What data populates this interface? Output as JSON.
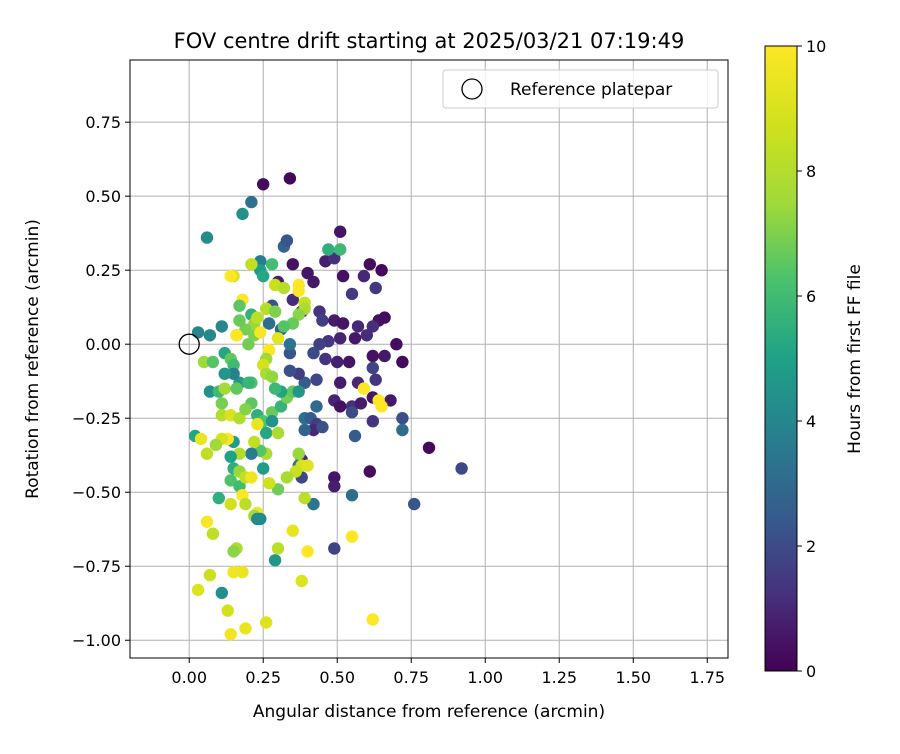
{
  "chart_data": {
    "type": "scatter",
    "title": "FOV centre drift starting at 2025/03/21 07:19:49",
    "xlabel": "Angular distance from reference (arcmin)",
    "ylabel": "Rotation from reference (arcmin)",
    "xlim": [
      -0.2,
      1.82
    ],
    "ylim": [
      -1.06,
      0.96
    ],
    "xticks": [
      0.0,
      0.25,
      0.5,
      0.75,
      1.0,
      1.25,
      1.5,
      1.75
    ],
    "xtick_labels": [
      "0.00",
      "0.25",
      "0.50",
      "0.75",
      "1.00",
      "1.25",
      "1.50",
      "1.75"
    ],
    "yticks": [
      -1.0,
      -0.75,
      -0.5,
      -0.25,
      0.0,
      0.25,
      0.5,
      0.75
    ],
    "ytick_labels": [
      "−1.00",
      "−0.75",
      "−0.50",
      "−0.25",
      "0.00",
      "0.25",
      "0.50",
      "0.75"
    ],
    "grid": true,
    "legend": {
      "placement": "top-right",
      "entries": [
        "Reference platepar"
      ]
    },
    "reference_point": {
      "name": "Reference platepar",
      "x": 0.0,
      "y": 0.0
    },
    "colorbar": {
      "label": "Hours from first FF file",
      "range": [
        0,
        10
      ],
      "ticks": [
        0,
        2,
        4,
        6,
        8,
        10
      ],
      "tick_labels": [
        "0",
        "2",
        "4",
        "6",
        "8",
        "10"
      ],
      "colormap": "viridis"
    },
    "points": [
      [
        0.25,
        0.54,
        0.3
      ],
      [
        0.34,
        0.56,
        0.2
      ],
      [
        0.51,
        0.38,
        0.5
      ],
      [
        0.46,
        0.28,
        0.8
      ],
      [
        0.49,
        0.29,
        1.2
      ],
      [
        0.52,
        0.23,
        0.4
      ],
      [
        0.61,
        0.27,
        0.3
      ],
      [
        0.65,
        0.25,
        0.2
      ],
      [
        0.59,
        0.23,
        1.0
      ],
      [
        0.63,
        0.19,
        1.4
      ],
      [
        0.55,
        0.17,
        1.5
      ],
      [
        0.42,
        0.21,
        0.6
      ],
      [
        0.4,
        0.24,
        0.5
      ],
      [
        0.35,
        0.27,
        0.4
      ],
      [
        0.3,
        0.21,
        0.8
      ],
      [
        0.35,
        0.15,
        1.1
      ],
      [
        0.38,
        0.11,
        0.9
      ],
      [
        0.44,
        0.11,
        1.3
      ],
      [
        0.45,
        0.08,
        1.6
      ],
      [
        0.49,
        0.08,
        0.7
      ],
      [
        0.52,
        0.07,
        0.5
      ],
      [
        0.57,
        0.06,
        1.0
      ],
      [
        0.64,
        0.08,
        0.4
      ],
      [
        0.66,
        0.09,
        0.3
      ],
      [
        0.62,
        0.06,
        1.2
      ],
      [
        0.6,
        0.03,
        1.1
      ],
      [
        0.56,
        0.02,
        0.6
      ],
      [
        0.51,
        0.02,
        0.9
      ],
      [
        0.47,
        0.01,
        1.4
      ],
      [
        0.44,
        0.0,
        1.7
      ],
      [
        0.42,
        -0.03,
        2.0
      ],
      [
        0.46,
        -0.05,
        1.3
      ],
      [
        0.5,
        -0.06,
        0.8
      ],
      [
        0.54,
        -0.06,
        0.5
      ],
      [
        0.62,
        -0.04,
        0.4
      ],
      [
        0.66,
        -0.04,
        0.6
      ],
      [
        0.7,
        0.0,
        0.3
      ],
      [
        0.72,
        -0.06,
        0.2
      ],
      [
        0.62,
        -0.08,
        1.8
      ],
      [
        0.63,
        -0.12,
        1.4
      ],
      [
        0.57,
        -0.13,
        1.0
      ],
      [
        0.51,
        -0.13,
        0.7
      ],
      [
        0.43,
        -0.12,
        1.9
      ],
      [
        0.39,
        -0.13,
        2.5
      ],
      [
        0.37,
        -0.1,
        1.6
      ],
      [
        0.34,
        -0.09,
        2.1
      ],
      [
        0.34,
        -0.03,
        2.3
      ],
      [
        0.34,
        0.0,
        3.4
      ],
      [
        0.31,
        0.05,
        2.7
      ],
      [
        0.27,
        0.07,
        3.1
      ],
      [
        0.28,
        0.13,
        2.2
      ],
      [
        0.32,
        0.33,
        2.8
      ],
      [
        0.33,
        0.35,
        2.3
      ],
      [
        0.21,
        0.48,
        3.2
      ],
      [
        0.18,
        0.44,
        4.4
      ],
      [
        0.06,
        0.36,
        4.2
      ],
      [
        0.24,
        0.28,
        3.7
      ],
      [
        0.24,
        0.25,
        4.8
      ],
      [
        0.28,
        0.27,
        6.1
      ],
      [
        0.25,
        0.23,
        5.2
      ],
      [
        0.21,
        0.27,
        8.4
      ],
      [
        0.15,
        0.23,
        8.9
      ],
      [
        0.14,
        0.23,
        10.0
      ],
      [
        0.18,
        0.15,
        10.0
      ],
      [
        0.17,
        0.13,
        6.5
      ],
      [
        0.21,
        0.1,
        5.6
      ],
      [
        0.22,
        0.07,
        7.4
      ],
      [
        0.19,
        0.05,
        6.9
      ],
      [
        0.16,
        0.03,
        6.2
      ],
      [
        0.17,
        0.08,
        6.7
      ],
      [
        0.11,
        0.06,
        4.0
      ],
      [
        0.07,
        0.03,
        4.1
      ],
      [
        0.03,
        0.04,
        4.0
      ],
      [
        0.05,
        -0.06,
        7.5
      ],
      [
        0.08,
        -0.06,
        6.4
      ],
      [
        0.12,
        -0.03,
        5.2
      ],
      [
        0.14,
        -0.05,
        6.6
      ],
      [
        0.15,
        -0.07,
        6.0
      ],
      [
        0.16,
        0.03,
        10.0
      ],
      [
        0.2,
        0.0,
        6.8
      ],
      [
        0.22,
        0.03,
        7.0
      ],
      [
        0.24,
        0.04,
        9.8
      ],
      [
        0.23,
        0.09,
        8.2
      ],
      [
        0.26,
        0.12,
        8.1
      ],
      [
        0.29,
        0.11,
        7.0
      ],
      [
        0.29,
        0.2,
        8.6
      ],
      [
        0.32,
        0.19,
        8.1
      ],
      [
        0.37,
        0.2,
        10.0
      ],
      [
        0.37,
        0.18,
        10.0
      ],
      [
        0.39,
        0.14,
        8.5
      ],
      [
        0.39,
        0.12,
        7.8
      ],
      [
        0.37,
        0.1,
        7.2
      ],
      [
        0.35,
        0.07,
        6.7
      ],
      [
        0.32,
        0.06,
        6.4
      ],
      [
        0.3,
        0.02,
        9.3
      ],
      [
        0.27,
        -0.02,
        10.0
      ],
      [
        0.26,
        -0.05,
        7.5
      ],
      [
        0.25,
        -0.07,
        8.9
      ],
      [
        0.26,
        -0.1,
        7.8
      ],
      [
        0.28,
        -0.11,
        7.3
      ],
      [
        0.21,
        -0.13,
        6.2
      ],
      [
        0.17,
        -0.13,
        4.7
      ],
      [
        0.15,
        -0.1,
        3.8
      ],
      [
        0.12,
        -0.1,
        4.6
      ],
      [
        0.07,
        -0.16,
        4.5
      ],
      [
        0.1,
        -0.16,
        6.0
      ],
      [
        0.11,
        -0.2,
        6.9
      ],
      [
        0.12,
        -0.15,
        7.6
      ],
      [
        0.16,
        -0.15,
        6.6
      ],
      [
        0.2,
        -0.13,
        5.8
      ],
      [
        0.21,
        -0.2,
        6.5
      ],
      [
        0.23,
        -0.24,
        5.5
      ],
      [
        0.25,
        -0.26,
        6.3
      ],
      [
        0.28,
        -0.23,
        6.7
      ],
      [
        0.31,
        -0.21,
        5.7
      ],
      [
        0.33,
        -0.18,
        6.9
      ],
      [
        0.35,
        -0.16,
        6.6
      ],
      [
        0.31,
        -0.16,
        5.1
      ],
      [
        0.29,
        -0.15,
        5.9
      ],
      [
        0.37,
        -0.16,
        4.6
      ],
      [
        0.11,
        -0.24,
        8.0
      ],
      [
        0.14,
        -0.24,
        9.0
      ],
      [
        0.17,
        -0.25,
        8.0
      ],
      [
        0.19,
        -0.22,
        7.1
      ],
      [
        0.23,
        -0.27,
        9.5
      ],
      [
        0.26,
        -0.3,
        5.2
      ],
      [
        0.3,
        -0.3,
        7.8
      ],
      [
        0.28,
        -0.26,
        4.5
      ],
      [
        0.39,
        -0.25,
        3.3
      ],
      [
        0.41,
        -0.25,
        2.5
      ],
      [
        0.43,
        -0.27,
        1.6
      ],
      [
        0.42,
        -0.29,
        1.0
      ],
      [
        0.45,
        -0.28,
        2.2
      ],
      [
        0.39,
        -0.29,
        2.8
      ],
      [
        0.43,
        -0.21,
        3.0
      ],
      [
        0.49,
        -0.19,
        0.9
      ],
      [
        0.51,
        -0.21,
        0.4
      ],
      [
        0.55,
        -0.21,
        1.2
      ],
      [
        0.55,
        -0.23,
        2.0
      ],
      [
        0.62,
        -0.26,
        1.3
      ],
      [
        0.58,
        -0.2,
        0.7
      ],
      [
        0.62,
        -0.18,
        0.5
      ],
      [
        0.68,
        -0.19,
        0.6
      ],
      [
        0.72,
        -0.25,
        2.1
      ],
      [
        0.72,
        -0.29,
        3.0
      ],
      [
        0.81,
        -0.35,
        0.2
      ],
      [
        0.92,
        -0.42,
        1.9
      ],
      [
        0.76,
        -0.54,
        2.3
      ],
      [
        0.61,
        -0.43,
        0.3
      ],
      [
        0.56,
        -0.31,
        2.5
      ],
      [
        0.49,
        -0.45,
        0.5
      ],
      [
        0.49,
        -0.48,
        0.8
      ],
      [
        0.38,
        -0.39,
        1.0
      ],
      [
        0.37,
        -0.41,
        3.3
      ],
      [
        0.38,
        -0.45,
        2.0
      ],
      [
        0.42,
        -0.54,
        3.4
      ],
      [
        0.55,
        -0.51,
        3.1
      ],
      [
        0.49,
        -0.69,
        1.8
      ],
      [
        0.59,
        -0.15,
        10.0
      ],
      [
        0.64,
        -0.19,
        10.0
      ],
      [
        0.65,
        -0.21,
        10.0
      ],
      [
        0.38,
        -0.41,
        8.9
      ],
      [
        0.4,
        -0.41,
        9.2
      ],
      [
        0.37,
        -0.37,
        7.4
      ],
      [
        0.36,
        -0.43,
        8.5
      ],
      [
        0.33,
        -0.45,
        7.7
      ],
      [
        0.3,
        -0.49,
        6.8
      ],
      [
        0.27,
        -0.47,
        8.7
      ],
      [
        0.25,
        -0.42,
        4.8
      ],
      [
        0.26,
        -0.37,
        7.8
      ],
      [
        0.24,
        -0.36,
        6.4
      ],
      [
        0.22,
        -0.33,
        8.4
      ],
      [
        0.21,
        -0.37,
        3.6
      ],
      [
        0.17,
        -0.37,
        8.0
      ],
      [
        0.15,
        -0.33,
        4.8
      ],
      [
        0.13,
        -0.32,
        10.0
      ],
      [
        0.11,
        -0.32,
        8.9
      ],
      [
        0.09,
        -0.34,
        7.5
      ],
      [
        0.06,
        -0.37,
        8.3
      ],
      [
        0.02,
        -0.31,
        5.1
      ],
      [
        0.04,
        -0.32,
        9.5
      ],
      [
        0.14,
        -0.38,
        5.0
      ],
      [
        0.15,
        -0.42,
        5.5
      ],
      [
        0.14,
        -0.46,
        6.3
      ],
      [
        0.17,
        -0.43,
        7.4
      ],
      [
        0.17,
        -0.48,
        6.0
      ],
      [
        0.19,
        -0.45,
        8.4
      ],
      [
        0.18,
        -0.51,
        10.0
      ],
      [
        0.21,
        -0.45,
        9.6
      ],
      [
        0.1,
        -0.52,
        5.5
      ],
      [
        0.14,
        -0.54,
        8.8
      ],
      [
        0.19,
        -0.54,
        8.2
      ],
      [
        0.23,
        -0.57,
        9.6
      ],
      [
        0.22,
        -0.58,
        7.5
      ],
      [
        0.23,
        -0.59,
        3.8
      ],
      [
        0.24,
        -0.59,
        4.2
      ],
      [
        0.06,
        -0.6,
        9.8
      ],
      [
        0.08,
        -0.64,
        8.3
      ],
      [
        0.16,
        -0.69,
        7.9
      ],
      [
        0.15,
        -0.7,
        7.2
      ],
      [
        0.15,
        -0.77,
        9.6
      ],
      [
        0.18,
        -0.77,
        9.5
      ],
      [
        0.07,
        -0.78,
        8.6
      ],
      [
        0.03,
        -0.83,
        9.1
      ],
      [
        0.11,
        -0.84,
        4.3
      ],
      [
        0.13,
        -0.9,
        8.8
      ],
      [
        0.14,
        -0.98,
        9.7
      ],
      [
        0.19,
        -0.96,
        9.5
      ],
      [
        0.26,
        -0.94,
        9.1
      ],
      [
        0.29,
        -0.73,
        4.6
      ],
      [
        0.3,
        -0.69,
        8.2
      ],
      [
        0.35,
        -0.63,
        9.4
      ],
      [
        0.38,
        -0.8,
        9.1
      ],
      [
        0.4,
        -0.7,
        10.0
      ],
      [
        0.39,
        -0.52,
        8.2
      ],
      [
        0.55,
        -0.65,
        10.0
      ],
      [
        0.62,
        -0.93,
        10.0
      ],
      [
        0.51,
        0.32,
        5.9
      ],
      [
        0.47,
        0.32,
        5.5
      ]
    ]
  }
}
